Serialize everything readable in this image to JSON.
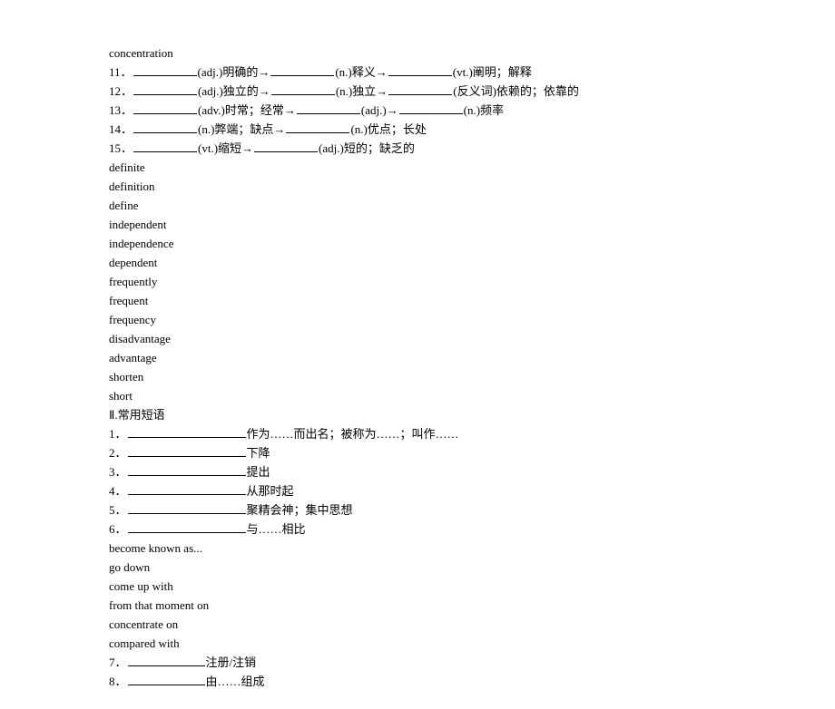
{
  "header_word": "concentration",
  "fill_items": [
    {
      "num": "11．",
      "parts": [
        "(adj.)明确的→",
        "(n.)释义→",
        "(vt.)阐明；解释"
      ]
    },
    {
      "num": "12．",
      "parts": [
        "(adj.)独立的→",
        "(n.)独立→",
        "(反义词)依赖的；依靠的"
      ]
    },
    {
      "num": "13．",
      "parts": [
        "(adv.)时常；经常→",
        "(adj.)→",
        "(n.)频率"
      ]
    },
    {
      "num": "14．",
      "parts": [
        "(n.)弊端；缺点→",
        "(n.)优点；长处"
      ]
    },
    {
      "num": "15．",
      "parts": [
        "(vt.)缩短→",
        "(adj.)短的；缺乏的"
      ]
    }
  ],
  "word_list": [
    "definite",
    "definition",
    "define",
    "independent",
    "independence",
    "dependent",
    "frequently",
    "frequent",
    "frequency",
    "disadvantage",
    "advantage",
    "shorten",
    "short"
  ],
  "section2_title": "Ⅱ.常用短语",
  "phrase_items": [
    {
      "num": "1．",
      "tail": "作为……而出名；被称为……；叫作……"
    },
    {
      "num": "2．",
      "tail": "下降"
    },
    {
      "num": "3．",
      "tail": "提出"
    },
    {
      "num": "4．",
      "tail": "从那时起"
    },
    {
      "num": "5．",
      "tail": "聚精会神；集中思想"
    },
    {
      "num": "6．",
      "tail": "与……相比"
    }
  ],
  "phrase_answers": [
    "become known as...",
    "go down",
    "come up with",
    "from that moment on",
    "concentrate on",
    "compared with"
  ],
  "phrase_items2": [
    {
      "num": "7．",
      "tail": "注册/注销"
    },
    {
      "num": "8．",
      "tail": "由……组成"
    }
  ]
}
